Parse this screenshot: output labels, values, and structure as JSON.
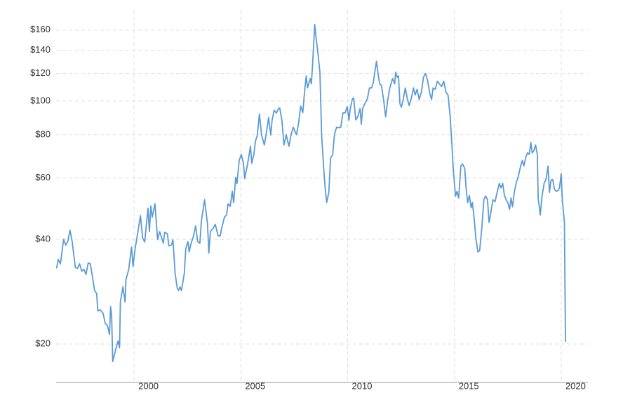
{
  "chart_data": {
    "type": "line",
    "color": "#5b9bd5",
    "yscale": "log",
    "grid": true,
    "xlim": [
      1996.35,
      2021.25
    ],
    "ylim": [
      15.5,
      182
    ],
    "xticks": [
      2000,
      2005,
      2010,
      2015,
      2020
    ],
    "yticks": [
      {
        "value": 20,
        "label": "$20"
      },
      {
        "value": 40,
        "label": "$40"
      },
      {
        "value": 60,
        "label": "$60"
      },
      {
        "value": 80,
        "label": "$80"
      },
      {
        "value": 100,
        "label": "$100"
      },
      {
        "value": 120,
        "label": "$120"
      },
      {
        "value": 140,
        "label": "$140"
      },
      {
        "value": 160,
        "label": "$160"
      }
    ],
    "x": [
      1996.37,
      1996.45,
      1996.55,
      1996.7,
      1996.8,
      1996.9,
      1997.0,
      1997.1,
      1997.25,
      1997.35,
      1997.45,
      1997.55,
      1997.65,
      1997.75,
      1997.85,
      1997.95,
      1998.05,
      1998.15,
      1998.25,
      1998.3,
      1998.4,
      1998.55,
      1998.65,
      1998.75,
      1998.85,
      1998.9,
      1998.95,
      1999.0,
      1999.15,
      1999.25,
      1999.32,
      1999.36,
      1999.48,
      1999.58,
      1999.62,
      1999.75,
      1999.88,
      1999.95,
      2000.05,
      2000.18,
      2000.3,
      2000.4,
      2000.5,
      2000.65,
      2000.72,
      2000.78,
      2000.85,
      2000.98,
      2001.1,
      2001.2,
      2001.37,
      2001.43,
      2001.56,
      2001.63,
      2001.76,
      2001.82,
      2001.92,
      2002.02,
      2002.09,
      2002.15,
      2002.22,
      2002.35,
      2002.42,
      2002.52,
      2002.58,
      2002.65,
      2002.78,
      2002.88,
      2002.98,
      2003.08,
      2003.15,
      2003.3,
      2003.44,
      2003.5,
      2003.57,
      2003.7,
      2003.8,
      2003.93,
      2004.03,
      2004.1,
      2004.23,
      2004.33,
      2004.4,
      2004.5,
      2004.6,
      2004.66,
      2004.76,
      2004.82,
      2004.92,
      2005.02,
      2005.12,
      2005.18,
      2005.32,
      2005.45,
      2005.51,
      2005.61,
      2005.68,
      2005.77,
      2005.87,
      2005.97,
      2006.1,
      2006.2,
      2006.3,
      2006.4,
      2006.46,
      2006.56,
      2006.66,
      2006.76,
      2006.82,
      2006.92,
      2007.02,
      2007.12,
      2007.25,
      2007.35,
      2007.45,
      2007.6,
      2007.7,
      2007.8,
      2007.9,
      2008.0,
      2008.06,
      2008.12,
      2008.25,
      2008.3,
      2008.35,
      2008.4,
      2008.46,
      2008.52,
      2008.6,
      2008.7,
      2008.78,
      2008.88,
      2008.95,
      2009.02,
      2009.12,
      2009.2,
      2009.3,
      2009.38,
      2009.48,
      2009.58,
      2009.68,
      2009.78,
      2009.88,
      2009.98,
      2010.06,
      2010.12,
      2010.22,
      2010.28,
      2010.38,
      2010.48,
      2010.58,
      2010.64,
      2010.7,
      2010.82,
      2010.92,
      2011.02,
      2011.12,
      2011.2,
      2011.28,
      2011.35,
      2011.42,
      2011.5,
      2011.58,
      2011.68,
      2011.78,
      2011.86,
      2011.96,
      2012.1,
      2012.2,
      2012.25,
      2012.32,
      2012.38,
      2012.45,
      2012.52,
      2012.6,
      2012.7,
      2012.8,
      2012.88,
      2013.0,
      2013.08,
      2013.16,
      2013.25,
      2013.35,
      2013.45,
      2013.55,
      2013.65,
      2013.75,
      2013.85,
      2013.93,
      2014.0,
      2014.1,
      2014.2,
      2014.3,
      2014.4,
      2014.5,
      2014.6,
      2014.7,
      2014.8,
      2014.88,
      2014.95,
      2015.05,
      2015.12,
      2015.2,
      2015.3,
      2015.38,
      2015.48,
      2015.55,
      2015.62,
      2015.7,
      2015.78,
      2015.84,
      2015.92,
      2016.0,
      2016.1,
      2016.18,
      2016.28,
      2016.38,
      2016.46,
      2016.55,
      2016.62,
      2016.7,
      2016.8,
      2016.9,
      2017.0,
      2017.1,
      2017.18,
      2017.26,
      2017.34,
      2017.42,
      2017.5,
      2017.58,
      2017.65,
      2017.72,
      2017.8,
      2017.9,
      2018.0,
      2018.1,
      2018.18,
      2018.25,
      2018.34,
      2018.42,
      2018.5,
      2018.58,
      2018.64,
      2018.72,
      2018.8,
      2018.88,
      2018.92,
      2019.02,
      2019.1,
      2019.2,
      2019.3,
      2019.38,
      2019.45,
      2019.52,
      2019.6,
      2019.68,
      2019.76,
      2019.84,
      2019.92,
      2020.0,
      2020.05,
      2020.15,
      2020.2
    ],
    "values": [
      33,
      35,
      34,
      40,
      38.5,
      39.5,
      42.5,
      39.5,
      33.2,
      33,
      34,
      32.4,
      32.8,
      31.7,
      34.2,
      34,
      31.2,
      28.5,
      27.9,
      24.9,
      25.1,
      24.5,
      22.9,
      22.6,
      21.3,
      25.6,
      24.2,
      17.8,
      19.4,
      20.4,
      19.5,
      26.5,
      29.2,
      26.4,
      30.6,
      32.8,
      38,
      33.4,
      37.6,
      42.1,
      46.8,
      40.4,
      39.3,
      49.2,
      42.1,
      49.9,
      46.3,
      50.6,
      39.9,
      42.1,
      39,
      41.9,
      41.5,
      38.3,
      38.6,
      39.9,
      31.9,
      29,
      28.5,
      29.2,
      28.5,
      31.9,
      37.6,
      39.4,
      36.8,
      38.6,
      40.8,
      43.7,
      39.4,
      39,
      45.1,
      52,
      44.2,
      36.5,
      42.1,
      43,
      44.2,
      41,
      40.9,
      43,
      46.3,
      47,
      50.6,
      49.8,
      55,
      51,
      60.3,
      57.9,
      67.4,
      70.2,
      66.2,
      59.8,
      66.2,
      74.1,
      66.2,
      70.2,
      76.5,
      79.8,
      91.8,
      79.8,
      74.7,
      81.6,
      89.6,
      79.8,
      88,
      94,
      92.3,
      95.1,
      95.5,
      88,
      74.7,
      80,
      74.1,
      80,
      84,
      80,
      86,
      96.7,
      92.6,
      109,
      118,
      109,
      116,
      112,
      125,
      142,
      166,
      152,
      139,
      121,
      80,
      64,
      55.8,
      51.1,
      54.6,
      68.6,
      70,
      80,
      84,
      83.8,
      84.1,
      92.4,
      92.4,
      96.3,
      88,
      95.1,
      101.2,
      102,
      88.2,
      90.2,
      95.1,
      85.7,
      95,
      98.7,
      101.2,
      109,
      109,
      113,
      122,
      130,
      120,
      112,
      111,
      101,
      90,
      99,
      108,
      116,
      112,
      121,
      117,
      118,
      98,
      96,
      101,
      109,
      101,
      97,
      103,
      109,
      104,
      108,
      101,
      106,
      117,
      120,
      114,
      105,
      101,
      109,
      108,
      114,
      112,
      110,
      114,
      106,
      104,
      90,
      75,
      63,
      53.2,
      55,
      52.6,
      65,
      65.9,
      64,
      55.7,
      51,
      53.5,
      49.3,
      51,
      46.3,
      40.4,
      36.8,
      37.1,
      43,
      52,
      53.3,
      52,
      44.7,
      47.5,
      52,
      51.3,
      54.6,
      57.9,
      56.2,
      57.9,
      53.5,
      52,
      51,
      48.8,
      52.6,
      49.6,
      54.6,
      58.3,
      61,
      65,
      67.4,
      65,
      68.8,
      70.9,
      70.2,
      76,
      70.9,
      71.9,
      74.7,
      70.2,
      52.6,
      47,
      53.3,
      57.9,
      59.8,
      65,
      54.6,
      59.2,
      59.5,
      55.8,
      55,
      55.2,
      56.2,
      61.8,
      52,
      44.7,
      20.3
    ]
  }
}
